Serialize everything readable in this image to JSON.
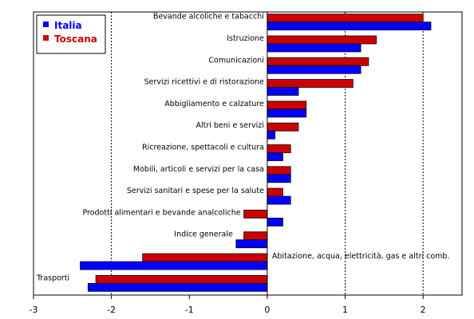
{
  "chart_data": {
    "type": "bar",
    "orientation": "horizontal",
    "categories": [
      "Bevande alcoliche e tabacchi",
      "Istruzione",
      "Comunicazioni",
      "Servizi ricettivi e di ristorazione",
      "Abbigliamento e calzature",
      "Altri beni e servizi",
      "Ricreazione, spettacoli e cultura",
      "Mobili, articoli e servizi per la casa",
      "Servizi sanitari e spese per la salute",
      "Prodotti alimentari e bevande analcoliche",
      "Indice generale",
      "Abitazione, acqua, elettricità, gas e altri comb.",
      "Trasporti"
    ],
    "series": [
      {
        "name": "Italia",
        "color": "#0000ff",
        "values": [
          2.1,
          1.2,
          1.2,
          0.4,
          0.5,
          0.1,
          0.2,
          0.3,
          0.3,
          0.2,
          -0.4,
          -2.4,
          -2.3
        ]
      },
      {
        "name": "Toscana",
        "color": "#cc0000",
        "values": [
          2.0,
          1.4,
          1.3,
          1.1,
          0.5,
          0.4,
          0.3,
          0.3,
          0.2,
          -0.3,
          -0.3,
          -1.6,
          -2.2
        ]
      }
    ],
    "xlim": [
      -3,
      2.5
    ],
    "xticks": [
      -3,
      -2,
      -1,
      0,
      1,
      2
    ],
    "grid_x": [
      -2,
      1,
      2
    ],
    "legend_position": "top-left"
  }
}
